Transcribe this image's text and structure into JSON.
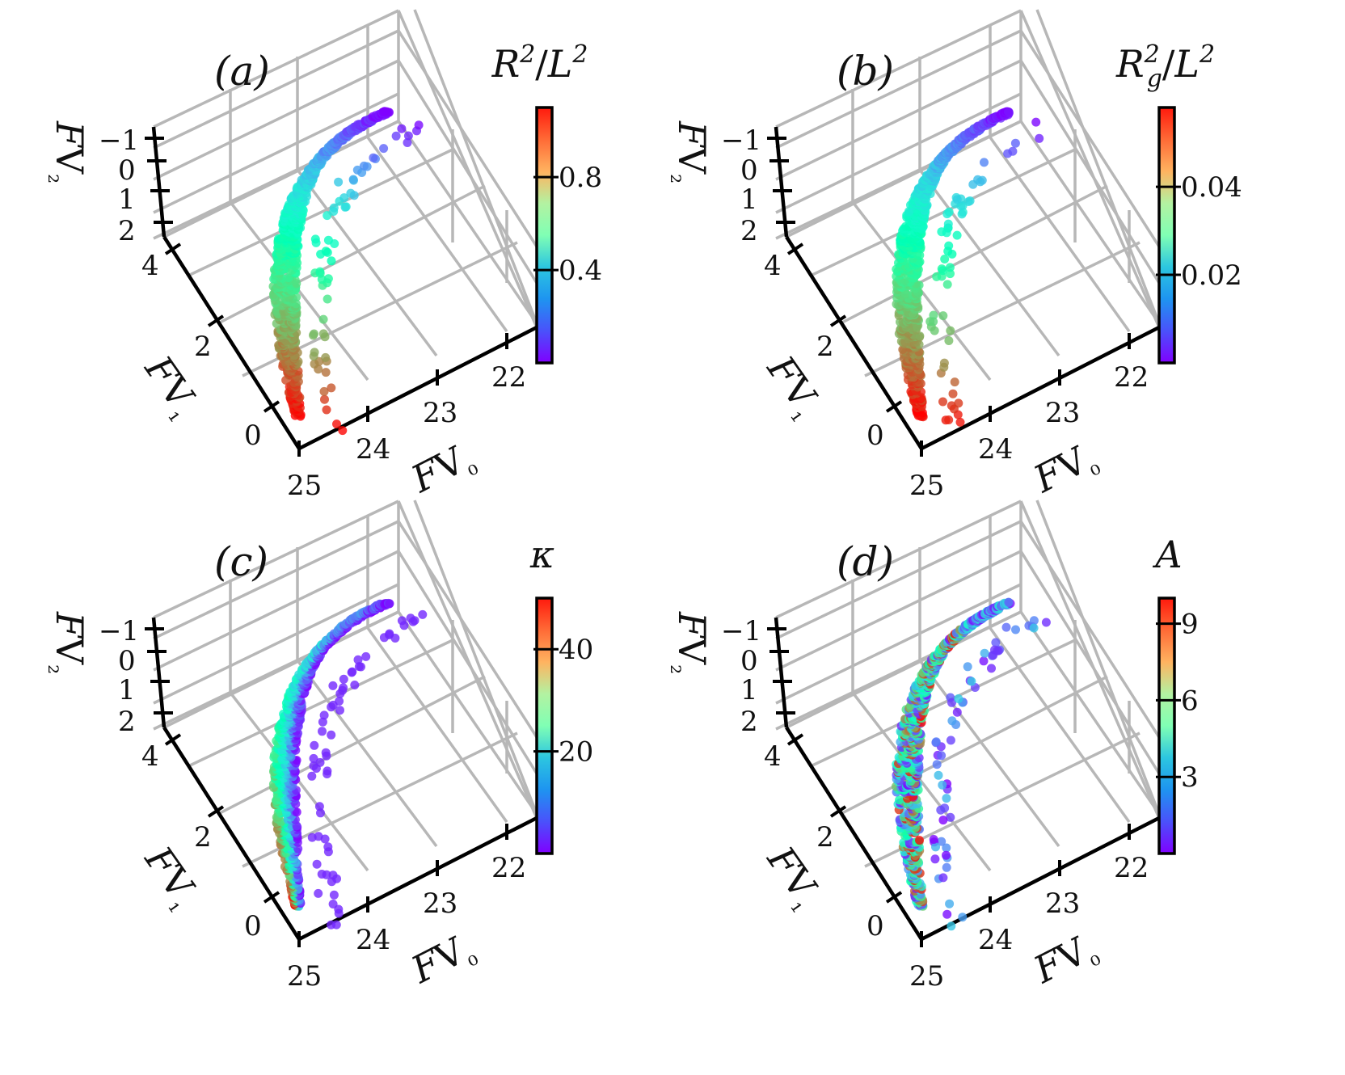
{
  "chart_data": [
    {
      "type": "scatter",
      "panel_label": "(a)",
      "colorbar": {
        "label": "R²/L²",
        "ticks": [
          "0.4",
          "0.8"
        ],
        "range": [
          0.0,
          1.1
        ],
        "cmap": "rainbow"
      },
      "axes": {
        "x": {
          "label": "FV₀",
          "ticks": [
            "22",
            "23",
            "24",
            "25"
          ]
        },
        "y": {
          "label": "FV₁",
          "ticks": [
            "0",
            "2",
            "4"
          ]
        },
        "z": {
          "label": "FV₂",
          "ticks": [
            "−1",
            "0",
            "1",
            "2"
          ]
        }
      },
      "pattern": "ordered"
    },
    {
      "type": "scatter",
      "panel_label": "(b)",
      "colorbar": {
        "label": "R_g²/L²",
        "ticks": [
          "0.02",
          "0.04"
        ],
        "range": [
          0.0,
          0.058
        ],
        "cmap": "rainbow"
      },
      "axes": {
        "x": {
          "label": "FV₀",
          "ticks": [
            "22",
            "23",
            "24",
            "25"
          ]
        },
        "y": {
          "label": "FV₁",
          "ticks": [
            "0",
            "2",
            "4"
          ]
        },
        "z": {
          "label": "FV₂",
          "ticks": [
            "−1",
            "0",
            "1",
            "2"
          ]
        }
      },
      "pattern": "ordered"
    },
    {
      "type": "scatter",
      "panel_label": "(c)",
      "colorbar": {
        "label": "κ",
        "ticks": [
          "20",
          "40"
        ],
        "range": [
          0,
          50
        ],
        "cmap": "rainbow"
      },
      "axes": {
        "x": {
          "label": "FV₀",
          "ticks": [
            "22",
            "23",
            "24",
            "25"
          ]
        },
        "y": {
          "label": "FV₁",
          "ticks": [
            "0",
            "2",
            "4"
          ]
        },
        "z": {
          "label": "FV₂",
          "ticks": [
            "−1",
            "0",
            "1",
            "2"
          ]
        }
      },
      "pattern": "cross"
    },
    {
      "type": "scatter",
      "panel_label": "(d)",
      "colorbar": {
        "label": "A",
        "ticks": [
          "3",
          "6",
          "9"
        ],
        "range": [
          0,
          10
        ],
        "cmap": "rainbow"
      },
      "axes": {
        "x": {
          "label": "FV₀",
          "ticks": [
            "22",
            "23",
            "24",
            "25"
          ]
        },
        "y": {
          "label": "FV₁",
          "ticks": [
            "0",
            "2",
            "4"
          ]
        },
        "z": {
          "label": "FV₂",
          "ticks": [
            "−1",
            "0",
            "1",
            "2"
          ]
        }
      },
      "pattern": "mixed"
    }
  ]
}
